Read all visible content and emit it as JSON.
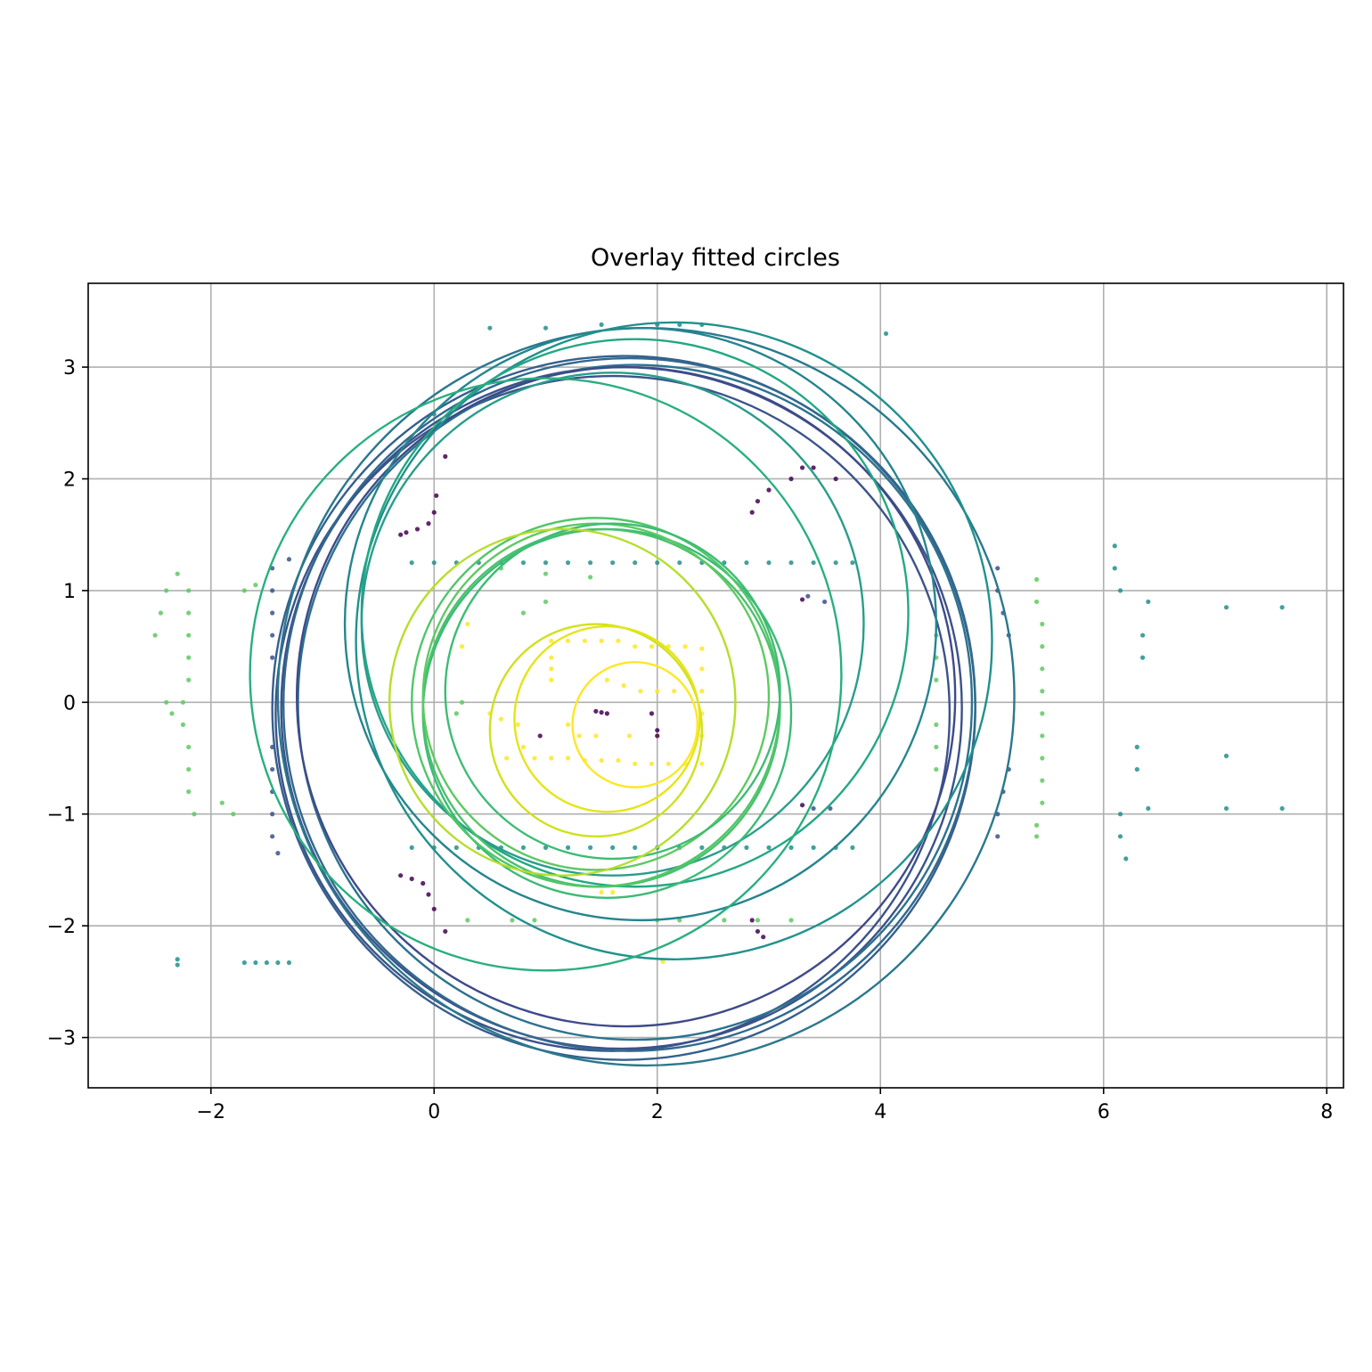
{
  "chart_data": {
    "type": "scatter",
    "title": "Overlay fitted circles",
    "xlabel": "",
    "ylabel": "",
    "xlim": [
      -3.1,
      8.15
    ],
    "ylim": [
      -3.45,
      3.75
    ],
    "xticks": [
      -2,
      0,
      2,
      4,
      6,
      8
    ],
    "yticks": [
      -3,
      -2,
      -1,
      0,
      1,
      2,
      3
    ],
    "xtick_labels": [
      "−2",
      "0",
      "2",
      "4",
      "6",
      "8"
    ],
    "ytick_labels": [
      "−3",
      "−2",
      "−1",
      "0",
      "1",
      "2",
      "3"
    ],
    "grid": true,
    "colormap": "viridis",
    "colors": [
      "#440154",
      "#3b528b",
      "#21918c",
      "#5ec962",
      "#fde725"
    ],
    "circles": [
      {
        "cx": 1.68,
        "cy": -0.05,
        "r": 3.05,
        "color": "#3b528b"
      },
      {
        "cx": 1.6,
        "cy": -0.1,
        "r": 3.02,
        "color": "#3a538a"
      },
      {
        "cx": 1.7,
        "cy": -0.05,
        "r": 3.15,
        "color": "#355f8d"
      },
      {
        "cx": 1.75,
        "cy": -0.02,
        "r": 3.1,
        "color": "#31688e"
      },
      {
        "cx": 1.8,
        "cy": 0.0,
        "r": 3.02,
        "color": "#2c728e"
      },
      {
        "cx": 1.72,
        "cy": 0.05,
        "r": 2.95,
        "color": "#3e4a89"
      },
      {
        "cx": 1.9,
        "cy": 0.05,
        "r": 3.3,
        "color": "#2a788e"
      },
      {
        "cx": 1.85,
        "cy": 0.7,
        "r": 2.65,
        "color": "#25858e"
      },
      {
        "cx": 2.15,
        "cy": 0.55,
        "r": 2.85,
        "color": "#21918c"
      },
      {
        "cx": 1.8,
        "cy": 0.8,
        "r": 2.45,
        "color": "#22a884"
      },
      {
        "cx": 1.6,
        "cy": 0.7,
        "r": 2.25,
        "color": "#2a9d8b"
      },
      {
        "cx": 1.0,
        "cy": 0.25,
        "r": 2.65,
        "color": "#29af7f"
      },
      {
        "cx": 1.55,
        "cy": -0.1,
        "r": 1.65,
        "color": "#3bbb75"
      },
      {
        "cx": 1.5,
        "cy": -0.05,
        "r": 1.6,
        "color": "#4ac16d"
      },
      {
        "cx": 1.45,
        "cy": 0.0,
        "r": 1.65,
        "color": "#52c569"
      },
      {
        "cx": 1.45,
        "cy": 0.05,
        "r": 1.55,
        "color": "#5ec962"
      },
      {
        "cx": 1.6,
        "cy": 0.1,
        "r": 1.5,
        "color": "#3dbc74"
      },
      {
        "cx": 1.15,
        "cy": 0.0,
        "r": 1.55,
        "color": "#b5de2b"
      },
      {
        "cx": 1.45,
        "cy": -0.25,
        "r": 0.95,
        "color": "#d0e11c"
      },
      {
        "cx": 1.55,
        "cy": -0.15,
        "r": 0.83,
        "color": "#e5e419"
      },
      {
        "cx": 1.8,
        "cy": -0.2,
        "r": 0.56,
        "color": "#fde725"
      }
    ],
    "point_groups": [
      {
        "color": "#3b528b",
        "points": [
          [
            -1.45,
            -1.2
          ],
          [
            -1.45,
            -1.0
          ],
          [
            -1.45,
            -0.8
          ],
          [
            -1.45,
            -0.6
          ],
          [
            -1.45,
            -0.4
          ],
          [
            -1.45,
            0.4
          ],
          [
            -1.45,
            0.6
          ],
          [
            -1.45,
            0.8
          ],
          [
            -1.45,
            1.0
          ],
          [
            -1.45,
            1.2
          ],
          [
            -1.4,
            -1.35
          ],
          [
            -1.3,
            1.28
          ],
          [
            5.05,
            1.2
          ],
          [
            5.05,
            1.0
          ],
          [
            5.05,
            -1.0
          ],
          [
            5.05,
            -1.2
          ],
          [
            5.1,
            0.8
          ],
          [
            5.1,
            -0.8
          ],
          [
            5.15,
            0.6
          ],
          [
            5.15,
            -0.6
          ],
          [
            3.35,
            0.95
          ],
          [
            3.5,
            0.9
          ],
          [
            3.4,
            -0.95
          ],
          [
            3.55,
            -0.95
          ]
        ]
      },
      {
        "color": "#21918c",
        "points": [
          [
            -0.2,
            1.25
          ],
          [
            0.0,
            1.25
          ],
          [
            0.2,
            1.25
          ],
          [
            0.4,
            1.25
          ],
          [
            0.6,
            1.25
          ],
          [
            0.8,
            1.25
          ],
          [
            1.0,
            1.25
          ],
          [
            1.2,
            1.25
          ],
          [
            1.4,
            1.25
          ],
          [
            1.6,
            1.25
          ],
          [
            1.8,
            1.25
          ],
          [
            2.0,
            1.25
          ],
          [
            2.2,
            1.25
          ],
          [
            2.4,
            1.25
          ],
          [
            2.6,
            1.25
          ],
          [
            2.8,
            1.25
          ],
          [
            3.0,
            1.25
          ],
          [
            3.2,
            1.25
          ],
          [
            3.4,
            1.25
          ],
          [
            3.6,
            1.25
          ],
          [
            3.75,
            1.25
          ],
          [
            -0.2,
            -1.3
          ],
          [
            0.0,
            -1.3
          ],
          [
            0.2,
            -1.3
          ],
          [
            0.4,
            -1.3
          ],
          [
            0.6,
            -1.3
          ],
          [
            0.8,
            -1.3
          ],
          [
            1.0,
            -1.3
          ],
          [
            1.2,
            -1.3
          ],
          [
            1.4,
            -1.3
          ],
          [
            1.6,
            -1.3
          ],
          [
            1.8,
            -1.3
          ],
          [
            2.0,
            -1.3
          ],
          [
            2.2,
            -1.3
          ],
          [
            2.4,
            -1.3
          ],
          [
            2.6,
            -1.3
          ],
          [
            2.8,
            -1.3
          ],
          [
            3.0,
            -1.3
          ],
          [
            3.2,
            -1.3
          ],
          [
            3.4,
            -1.3
          ],
          [
            3.6,
            -1.3
          ],
          [
            3.75,
            -1.3
          ],
          [
            6.1,
            1.4
          ],
          [
            6.1,
            1.2
          ],
          [
            6.15,
            1.0
          ],
          [
            6.15,
            -1.0
          ],
          [
            6.15,
            -1.2
          ],
          [
            6.2,
            -1.4
          ],
          [
            6.3,
            -0.4
          ],
          [
            6.3,
            -0.6
          ],
          [
            6.35,
            0.4
          ],
          [
            6.35,
            0.6
          ],
          [
            6.4,
            0.9
          ],
          [
            6.4,
            -0.95
          ],
          [
            7.1,
            0.85
          ],
          [
            7.1,
            -0.95
          ],
          [
            7.6,
            0.85
          ],
          [
            7.6,
            -0.95
          ],
          [
            7.1,
            -0.48
          ],
          [
            -2.3,
            -2.3
          ],
          [
            -2.3,
            -2.35
          ],
          [
            -1.7,
            -2.33
          ],
          [
            -1.6,
            -2.33
          ],
          [
            -1.5,
            -2.33
          ],
          [
            -1.4,
            -2.33
          ],
          [
            -1.3,
            -2.33
          ],
          [
            4.05,
            3.3
          ],
          [
            0.0,
            2.58
          ],
          [
            0.5,
            3.35
          ],
          [
            1.0,
            3.35
          ],
          [
            1.5,
            3.38
          ],
          [
            2.0,
            3.38
          ],
          [
            2.2,
            3.38
          ],
          [
            2.4,
            3.38
          ]
        ]
      },
      {
        "color": "#5ec962",
        "points": [
          [
            -2.5,
            0.6
          ],
          [
            -2.45,
            0.8
          ],
          [
            -2.4,
            1.0
          ],
          [
            -2.3,
            1.15
          ],
          [
            -2.2,
            1.0
          ],
          [
            -2.2,
            0.8
          ],
          [
            -2.2,
            0.6
          ],
          [
            -2.2,
            0.4
          ],
          [
            -2.2,
            0.2
          ],
          [
            -2.25,
            0.0
          ],
          [
            -2.25,
            -0.2
          ],
          [
            -2.2,
            -0.4
          ],
          [
            -2.2,
            -0.6
          ],
          [
            -2.2,
            -0.8
          ],
          [
            -2.15,
            -1.0
          ],
          [
            -2.35,
            -0.1
          ],
          [
            -2.4,
            0.0
          ],
          [
            -1.9,
            -0.9
          ],
          [
            -1.8,
            -1.0
          ],
          [
            -1.7,
            1.0
          ],
          [
            -1.6,
            1.05
          ],
          [
            5.4,
            1.1
          ],
          [
            5.4,
            0.9
          ],
          [
            5.45,
            0.7
          ],
          [
            5.45,
            0.5
          ],
          [
            5.45,
            0.3
          ],
          [
            5.45,
            0.1
          ],
          [
            5.45,
            -0.1
          ],
          [
            5.45,
            -0.3
          ],
          [
            5.45,
            -0.5
          ],
          [
            5.45,
            -0.7
          ],
          [
            5.45,
            -0.9
          ],
          [
            5.4,
            -1.1
          ],
          [
            5.4,
            -1.2
          ],
          [
            4.5,
            0.6
          ],
          [
            4.5,
            0.4
          ],
          [
            4.5,
            0.2
          ],
          [
            4.5,
            -0.2
          ],
          [
            4.5,
            -0.4
          ],
          [
            4.5,
            -0.6
          ],
          [
            0.2,
            -0.1
          ],
          [
            0.25,
            0.0
          ],
          [
            0.7,
            -1.95
          ],
          [
            0.9,
            -1.95
          ],
          [
            2.0,
            -1.95
          ],
          [
            2.2,
            -1.95
          ],
          [
            2.6,
            -1.95
          ],
          [
            2.9,
            -1.95
          ],
          [
            3.2,
            -1.95
          ],
          [
            0.3,
            -1.95
          ],
          [
            0.6,
            1.2
          ],
          [
            1.4,
            1.12
          ],
          [
            1.0,
            1.15
          ],
          [
            0.8,
            0.8
          ],
          [
            1.0,
            0.9
          ]
        ]
      },
      {
        "color": "#fde725",
        "points": [
          [
            1.05,
            0.55
          ],
          [
            1.2,
            0.55
          ],
          [
            1.35,
            0.55
          ],
          [
            1.5,
            0.55
          ],
          [
            1.65,
            0.55
          ],
          [
            1.8,
            0.5
          ],
          [
            1.95,
            0.5
          ],
          [
            2.1,
            0.5
          ],
          [
            2.25,
            0.5
          ],
          [
            2.4,
            0.48
          ],
          [
            1.05,
            -0.5
          ],
          [
            1.2,
            -0.5
          ],
          [
            1.35,
            -0.52
          ],
          [
            1.5,
            -0.52
          ],
          [
            1.65,
            -0.52
          ],
          [
            1.8,
            -0.55
          ],
          [
            1.95,
            -0.55
          ],
          [
            2.1,
            -0.55
          ],
          [
            2.25,
            -0.55
          ],
          [
            2.4,
            -0.55
          ],
          [
            1.05,
            0.4
          ],
          [
            1.05,
            0.3
          ],
          [
            1.05,
            0.2
          ],
          [
            2.4,
            0.3
          ],
          [
            2.4,
            0.1
          ],
          [
            2.4,
            -0.1
          ],
          [
            2.4,
            -0.3
          ],
          [
            1.2,
            -0.2
          ],
          [
            1.3,
            -0.3
          ],
          [
            1.55,
            0.2
          ],
          [
            1.7,
            0.15
          ],
          [
            1.85,
            0.1
          ],
          [
            2.0,
            0.1
          ],
          [
            2.15,
            0.1
          ],
          [
            1.45,
            -0.3
          ],
          [
            1.75,
            -0.3
          ],
          [
            2.0,
            -0.3
          ],
          [
            0.5,
            -0.1
          ],
          [
            0.6,
            -0.15
          ],
          [
            0.75,
            -0.2
          ],
          [
            0.8,
            -0.4
          ],
          [
            0.9,
            -0.5
          ],
          [
            0.65,
            -0.5
          ],
          [
            0.25,
            0.5
          ],
          [
            0.3,
            0.7
          ],
          [
            1.5,
            -1.7
          ],
          [
            1.6,
            -1.7
          ],
          [
            2.05,
            -2.32
          ]
        ]
      },
      {
        "color": "#440154",
        "points": [
          [
            1.45,
            -0.08
          ],
          [
            1.5,
            -0.09
          ],
          [
            1.55,
            -0.1
          ],
          [
            1.95,
            -0.1
          ],
          [
            2.0,
            -0.25
          ],
          [
            2.0,
            -0.3
          ],
          [
            -0.3,
            1.5
          ],
          [
            -0.25,
            1.52
          ],
          [
            -0.15,
            1.55
          ],
          [
            -0.05,
            1.6
          ],
          [
            0.0,
            1.7
          ],
          [
            0.02,
            1.85
          ],
          [
            -0.3,
            -1.55
          ],
          [
            -0.2,
            -1.58
          ],
          [
            -0.1,
            -1.62
          ],
          [
            -0.05,
            -1.72
          ],
          [
            0.0,
            -1.85
          ],
          [
            2.85,
            -1.95
          ],
          [
            2.9,
            -2.05
          ],
          [
            2.95,
            -2.1
          ],
          [
            3.2,
            2.0
          ],
          [
            3.3,
            2.1
          ],
          [
            3.4,
            2.1
          ],
          [
            3.6,
            2.0
          ],
          [
            2.85,
            1.7
          ],
          [
            2.9,
            1.8
          ],
          [
            3.0,
            1.9
          ],
          [
            0.95,
            -0.3
          ],
          [
            3.3,
            0.92
          ],
          [
            3.3,
            -0.92
          ],
          [
            0.1,
            -2.05
          ],
          [
            0.1,
            2.2
          ]
        ]
      }
    ]
  }
}
